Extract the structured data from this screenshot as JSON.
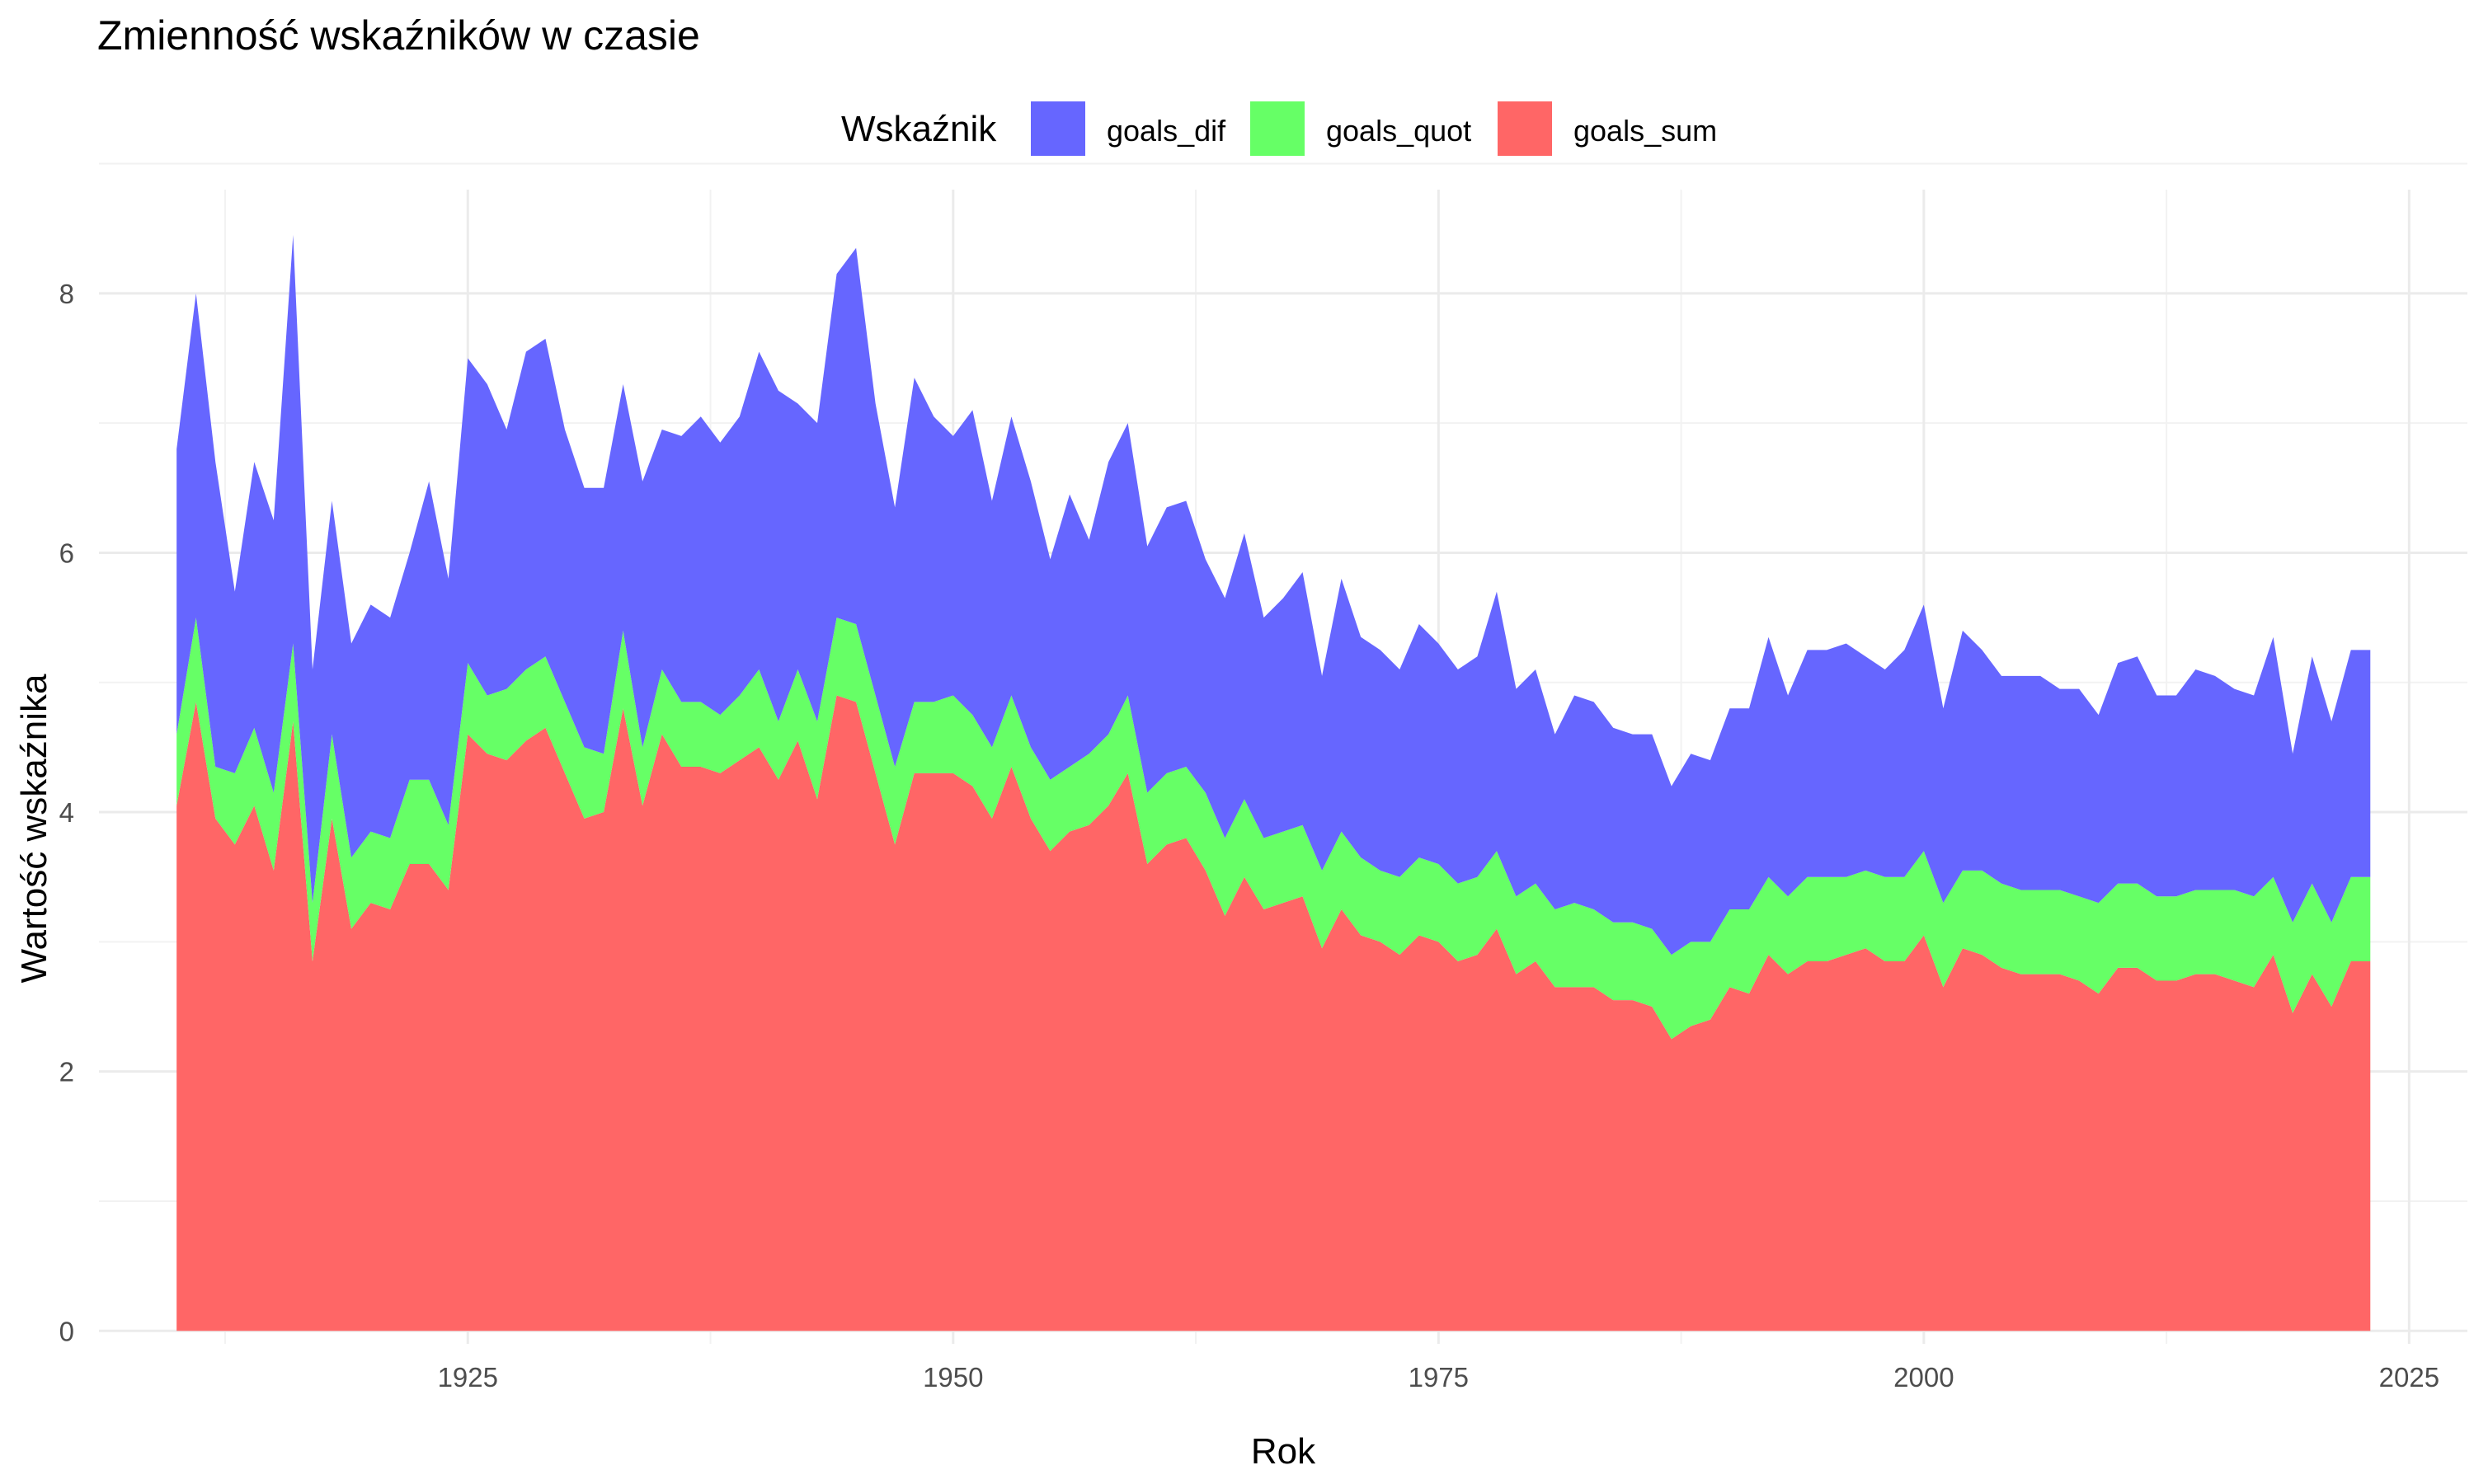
{
  "chart_data": {
    "type": "area",
    "stacked": true,
    "title": "Zmienność wskaźników w czasie",
    "xlabel": "Rok",
    "ylabel": "Wartość wskaźnika",
    "xlim": [
      1906,
      2028
    ],
    "ylim": [
      -0.1,
      8.8
    ],
    "xticks": [
      1925,
      1950,
      1975,
      2000,
      2025
    ],
    "yticks": [
      0,
      2,
      4,
      6,
      8
    ],
    "grid": true,
    "legend": {
      "title": "Wskaźnik",
      "position": "top",
      "entries": [
        "goals_dif",
        "goals_quot",
        "goals_sum"
      ]
    },
    "stack_order": [
      "goals_sum",
      "goals_quot",
      "goals_dif"
    ],
    "colors": {
      "goals_dif": "#6666ff",
      "goals_quot": "#66ff66",
      "goals_sum": "#ff6666"
    },
    "x": [
      1910,
      1911,
      1912,
      1913,
      1914,
      1915,
      1916,
      1917,
      1918,
      1919,
      1920,
      1921,
      1922,
      1923,
      1924,
      1925,
      1926,
      1927,
      1928,
      1929,
      1930,
      1931,
      1932,
      1933,
      1934,
      1935,
      1936,
      1937,
      1938,
      1939,
      1940,
      1941,
      1942,
      1943,
      1944,
      1945,
      1946,
      1947,
      1948,
      1949,
      1950,
      1951,
      1952,
      1953,
      1954,
      1955,
      1956,
      1957,
      1958,
      1959,
      1960,
      1961,
      1962,
      1963,
      1964,
      1965,
      1966,
      1967,
      1968,
      1969,
      1970,
      1971,
      1972,
      1973,
      1974,
      1975,
      1976,
      1977,
      1978,
      1979,
      1980,
      1981,
      1982,
      1983,
      1984,
      1985,
      1986,
      1987,
      1988,
      1989,
      1990,
      1991,
      1992,
      1993,
      1994,
      1995,
      1996,
      1997,
      1998,
      1999,
      2000,
      2001,
      2002,
      2003,
      2004,
      2005,
      2006,
      2007,
      2008,
      2009,
      2010,
      2011,
      2012,
      2013,
      2014,
      2015,
      2016,
      2017,
      2018,
      2019,
      2020,
      2021,
      2022,
      2023
    ],
    "stack_top": {
      "goals_sum": [
        4.05,
        4.85,
        3.95,
        3.75,
        4.05,
        3.55,
        4.7,
        2.85,
        3.95,
        3.1,
        3.3,
        3.25,
        3.6,
        3.6,
        3.4,
        4.6,
        4.45,
        4.4,
        4.55,
        4.65,
        4.3,
        3.95,
        4.0,
        4.8,
        4.05,
        4.6,
        4.35,
        4.35,
        4.3,
        4.4,
        4.5,
        4.25,
        4.55,
        4.1,
        4.9,
        4.85,
        4.3,
        3.75,
        4.3,
        4.3,
        4.3,
        4.2,
        3.95,
        4.35,
        3.95,
        3.7,
        3.85,
        3.9,
        4.05,
        4.3,
        3.6,
        3.75,
        3.8,
        3.55,
        3.2,
        3.5,
        3.25,
        3.3,
        3.35,
        2.95,
        3.25,
        3.05,
        3.0,
        2.9,
        3.05,
        3.0,
        2.85,
        2.9,
        3.1,
        2.75,
        2.85,
        2.65,
        2.65,
        2.65,
        2.55,
        2.55,
        2.5,
        2.25,
        2.35,
        2.4,
        2.65,
        2.6,
        2.9,
        2.75,
        2.85,
        2.85,
        2.9,
        2.95,
        2.85,
        2.85,
        3.05,
        2.65,
        2.95,
        2.9,
        2.8,
        2.75,
        2.75,
        2.75,
        2.7,
        2.6,
        2.8,
        2.8,
        2.7,
        2.7,
        2.75,
        2.75,
        2.7,
        2.65,
        2.9,
        2.45,
        2.75,
        2.5,
        2.85,
        2.85
      ],
      "goals_quot": [
        4.6,
        5.5,
        4.35,
        4.3,
        4.65,
        4.15,
        5.3,
        3.3,
        4.6,
        3.65,
        3.85,
        3.8,
        4.25,
        4.25,
        3.9,
        5.15,
        4.9,
        4.95,
        5.1,
        5.2,
        4.85,
        4.5,
        4.45,
        5.4,
        4.5,
        5.1,
        4.85,
        4.85,
        4.75,
        4.9,
        5.1,
        4.7,
        5.1,
        4.7,
        5.5,
        5.45,
        4.9,
        4.35,
        4.85,
        4.85,
        4.9,
        4.75,
        4.5,
        4.9,
        4.5,
        4.25,
        4.35,
        4.45,
        4.6,
        4.9,
        4.15,
        4.3,
        4.35,
        4.15,
        3.8,
        4.1,
        3.8,
        3.85,
        3.9,
        3.55,
        3.85,
        3.65,
        3.55,
        3.5,
        3.65,
        3.6,
        3.45,
        3.5,
        3.7,
        3.35,
        3.45,
        3.25,
        3.3,
        3.25,
        3.15,
        3.15,
        3.1,
        2.9,
        3.0,
        3.0,
        3.25,
        3.25,
        3.5,
        3.35,
        3.5,
        3.5,
        3.5,
        3.55,
        3.5,
        3.5,
        3.7,
        3.3,
        3.55,
        3.55,
        3.45,
        3.4,
        3.4,
        3.4,
        3.35,
        3.3,
        3.45,
        3.45,
        3.35,
        3.35,
        3.4,
        3.4,
        3.4,
        3.35,
        3.5,
        3.15,
        3.45,
        3.15,
        3.5,
        3.5
      ],
      "goals_dif": [
        6.8,
        8.0,
        6.7,
        5.7,
        6.7,
        6.25,
        8.45,
        5.1,
        6.4,
        5.3,
        5.6,
        5.5,
        6.0,
        6.55,
        5.8,
        7.5,
        7.3,
        6.95,
        7.55,
        7.65,
        6.95,
        6.5,
        6.5,
        7.3,
        6.55,
        6.95,
        6.9,
        7.05,
        6.85,
        7.05,
        7.55,
        7.25,
        7.15,
        7.0,
        8.15,
        8.35,
        7.15,
        6.35,
        7.35,
        7.05,
        6.9,
        7.1,
        6.4,
        7.05,
        6.55,
        5.95,
        6.45,
        6.1,
        6.7,
        7.0,
        6.05,
        6.35,
        6.4,
        5.95,
        5.65,
        6.15,
        5.5,
        5.65,
        5.85,
        5.05,
        5.8,
        5.35,
        5.25,
        5.1,
        5.45,
        5.3,
        5.1,
        5.2,
        5.7,
        4.95,
        5.1,
        4.6,
        4.9,
        4.85,
        4.65,
        4.6,
        4.6,
        4.2,
        4.45,
        4.4,
        4.8,
        4.8,
        5.35,
        4.9,
        5.25,
        5.25,
        5.3,
        5.2,
        5.1,
        5.25,
        5.6,
        4.8,
        5.4,
        5.25,
        5.05,
        5.05,
        5.05,
        4.95,
        4.95,
        4.75,
        5.15,
        5.2,
        4.9,
        4.9,
        5.1,
        5.05,
        4.95,
        4.9,
        5.35,
        4.45,
        5.2,
        4.7,
        5.25,
        5.25
      ]
    }
  }
}
